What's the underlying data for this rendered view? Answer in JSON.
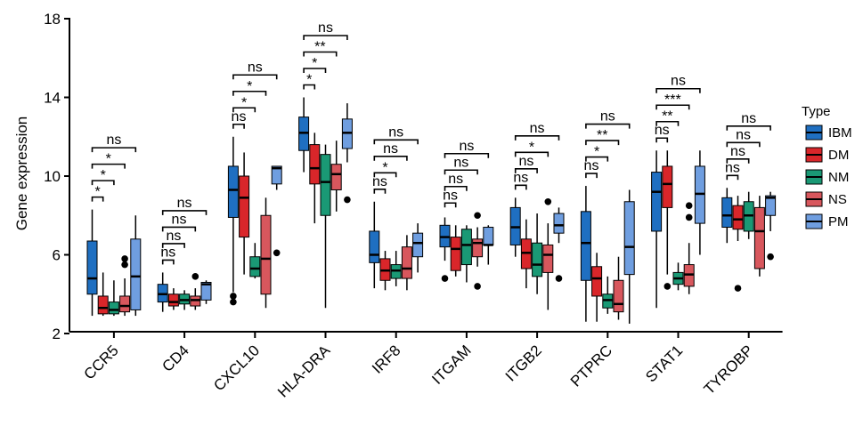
{
  "chart_data": {
    "type": "boxplot",
    "ylabel": "Gene expression",
    "ylim": [
      2,
      18
    ],
    "yticks": [
      "2",
      "6",
      "10",
      "14",
      "18"
    ],
    "legend": {
      "title": "Type",
      "position": "right"
    },
    "series": [
      {
        "name": "IBM",
        "color": "#1f6fc1"
      },
      {
        "name": "DM",
        "color": "#d9262a"
      },
      {
        "name": "NM",
        "color": "#1a9975"
      },
      {
        "name": "NS",
        "color": "#d8575d"
      },
      {
        "name": "PM",
        "color": "#6f9ee0"
      }
    ],
    "genes": [
      {
        "name": "CCR5",
        "boxes": [
          {
            "min": 2.9,
            "q1": 4.0,
            "med": 4.8,
            "q3": 6.7,
            "max": 8.3,
            "out": []
          },
          {
            "min": 2.9,
            "q1": 3.0,
            "med": 3.3,
            "q3": 3.9,
            "max": 5.1,
            "out": []
          },
          {
            "min": 2.9,
            "q1": 3.0,
            "med": 3.2,
            "q3": 3.6,
            "max": 4.7,
            "out": []
          },
          {
            "min": 2.9,
            "q1": 3.1,
            "med": 3.4,
            "q3": 3.9,
            "max": 4.8,
            "out": [
              5.5,
              5.8
            ]
          },
          {
            "min": 2.9,
            "q1": 3.2,
            "med": 4.9,
            "q3": 6.8,
            "max": 8.0,
            "out": []
          }
        ],
        "sig": [
          "*",
          "*",
          "*",
          "ns"
        ]
      },
      {
        "name": "CD4",
        "boxes": [
          {
            "min": 3.1,
            "q1": 3.6,
            "med": 4.0,
            "q3": 4.5,
            "max": 5.1,
            "out": []
          },
          {
            "min": 3.2,
            "q1": 3.4,
            "med": 3.6,
            "q3": 4.0,
            "max": 4.3,
            "out": []
          },
          {
            "min": 3.2,
            "q1": 3.5,
            "med": 3.7,
            "q3": 4.0,
            "max": 4.2,
            "out": []
          },
          {
            "min": 3.2,
            "q1": 3.4,
            "med": 3.7,
            "q3": 3.9,
            "max": 4.3,
            "out": [
              4.9
            ]
          },
          {
            "min": 3.5,
            "q1": 3.7,
            "med": 4.5,
            "q3": 4.6,
            "max": 4.7,
            "out": []
          }
        ],
        "sig": [
          "ns",
          "ns",
          "ns",
          "ns"
        ]
      },
      {
        "name": "CXCL10",
        "boxes": [
          {
            "min": 4.1,
            "q1": 7.9,
            "med": 9.3,
            "q3": 10.5,
            "max": 12.0,
            "out": [
              3.6,
              3.9
            ]
          },
          {
            "min": 5.0,
            "q1": 6.9,
            "med": 8.9,
            "q3": 10.0,
            "max": 11.2,
            "out": []
          },
          {
            "min": 4.8,
            "q1": 4.9,
            "med": 5.3,
            "q3": 5.9,
            "max": 6.6,
            "out": []
          },
          {
            "min": 3.3,
            "q1": 4.0,
            "med": 5.8,
            "q3": 8.0,
            "max": 8.9,
            "out": []
          },
          {
            "min": 9.3,
            "q1": 9.6,
            "med": 10.4,
            "q3": 10.5,
            "max": 10.5,
            "out": [
              6.1
            ]
          }
        ],
        "sig": [
          "ns",
          "*",
          "*",
          "ns"
        ]
      },
      {
        "name": "HLA-DRA",
        "boxes": [
          {
            "min": 10.2,
            "q1": 11.3,
            "med": 12.2,
            "q3": 13.0,
            "max": 14.0,
            "out": []
          },
          {
            "min": 7.6,
            "q1": 9.6,
            "med": 10.4,
            "q3": 11.6,
            "max": 12.2,
            "out": []
          },
          {
            "min": 3.3,
            "q1": 8.0,
            "med": 9.7,
            "q3": 11.1,
            "max": 11.6,
            "out": []
          },
          {
            "min": 8.2,
            "q1": 9.3,
            "med": 10.1,
            "q3": 10.6,
            "max": 11.8,
            "out": []
          },
          {
            "min": 10.7,
            "q1": 11.4,
            "med": 12.2,
            "q3": 12.9,
            "max": 13.7,
            "out": [
              8.8
            ]
          }
        ],
        "sig": [
          "*",
          "*",
          "**",
          "ns"
        ]
      },
      {
        "name": "IRF8",
        "boxes": [
          {
            "min": 4.3,
            "q1": 5.6,
            "med": 6.0,
            "q3": 7.2,
            "max": 8.7,
            "out": []
          },
          {
            "min": 4.2,
            "q1": 4.7,
            "med": 5.2,
            "q3": 5.8,
            "max": 6.2,
            "out": []
          },
          {
            "min": 4.4,
            "q1": 4.8,
            "med": 5.2,
            "q3": 5.5,
            "max": 6.2,
            "out": []
          },
          {
            "min": 4.2,
            "q1": 4.8,
            "med": 5.3,
            "q3": 6.4,
            "max": 7.0,
            "out": []
          },
          {
            "min": 5.1,
            "q1": 5.9,
            "med": 6.6,
            "q3": 7.1,
            "max": 7.6,
            "out": []
          }
        ],
        "sig": [
          "ns",
          "*",
          "ns",
          "ns"
        ]
      },
      {
        "name": "ITGAM",
        "boxes": [
          {
            "min": 5.7,
            "q1": 6.4,
            "med": 6.9,
            "q3": 7.5,
            "max": 7.9,
            "out": [
              4.8
            ]
          },
          {
            "min": 4.9,
            "q1": 5.2,
            "med": 6.3,
            "q3": 6.9,
            "max": 7.5,
            "out": []
          },
          {
            "min": 4.6,
            "q1": 5.5,
            "med": 6.5,
            "q3": 7.3,
            "max": 7.5,
            "out": []
          },
          {
            "min": 5.4,
            "q1": 5.9,
            "med": 6.6,
            "q3": 6.8,
            "max": 7.4,
            "out": [
              4.4,
              8.0
            ]
          },
          {
            "min": 5.5,
            "q1": 6.5,
            "med": 6.5,
            "q3": 7.4,
            "max": 7.5,
            "out": []
          }
        ],
        "sig": [
          "ns",
          "ns",
          "ns",
          "ns"
        ]
      },
      {
        "name": "ITGB2",
        "boxes": [
          {
            "min": 5.9,
            "q1": 6.5,
            "med": 7.4,
            "q3": 8.4,
            "max": 8.9,
            "out": []
          },
          {
            "min": 4.3,
            "q1": 5.3,
            "med": 6.1,
            "q3": 6.8,
            "max": 7.8,
            "out": []
          },
          {
            "min": 4.0,
            "q1": 4.9,
            "med": 5.5,
            "q3": 6.6,
            "max": 8.1,
            "out": []
          },
          {
            "min": 3.2,
            "q1": 5.1,
            "med": 6.0,
            "q3": 6.5,
            "max": 7.6,
            "out": [
              8.7
            ]
          },
          {
            "min": 6.6,
            "q1": 7.1,
            "med": 7.5,
            "q3": 8.1,
            "max": 8.4,
            "out": [
              4.8
            ]
          }
        ],
        "sig": [
          "ns",
          "ns",
          "*",
          "ns"
        ]
      },
      {
        "name": "PTPRC",
        "boxes": [
          {
            "min": 2.6,
            "q1": 4.7,
            "med": 6.6,
            "q3": 8.2,
            "max": 9.5,
            "out": []
          },
          {
            "min": 2.6,
            "q1": 3.9,
            "med": 4.8,
            "q3": 5.4,
            "max": 6.1,
            "out": []
          },
          {
            "min": 3.0,
            "q1": 3.3,
            "med": 3.7,
            "q3": 4.0,
            "max": 4.9,
            "out": []
          },
          {
            "min": 2.7,
            "q1": 3.1,
            "med": 3.5,
            "q3": 4.7,
            "max": 5.9,
            "out": []
          },
          {
            "min": 2.5,
            "q1": 5.0,
            "med": 6.4,
            "q3": 8.7,
            "max": 9.3,
            "out": []
          }
        ],
        "sig": [
          "ns",
          "*",
          "**",
          "ns"
        ]
      },
      {
        "name": "STAT1",
        "boxes": [
          {
            "min": 3.3,
            "q1": 7.2,
            "med": 9.2,
            "q3": 10.2,
            "max": 11.3,
            "out": []
          },
          {
            "min": 5.0,
            "q1": 8.4,
            "med": 9.6,
            "q3": 10.5,
            "max": 11.3,
            "out": [
              4.4
            ]
          },
          {
            "min": 4.2,
            "q1": 4.5,
            "med": 4.8,
            "q3": 5.1,
            "max": 5.6,
            "out": []
          },
          {
            "min": 4.0,
            "q1": 4.4,
            "med": 5.0,
            "q3": 5.5,
            "max": 6.6,
            "out": [
              7.9,
              8.5
            ]
          },
          {
            "min": 6.0,
            "q1": 7.6,
            "med": 9.1,
            "q3": 10.5,
            "max": 11.3,
            "out": []
          }
        ],
        "sig": [
          "ns",
          "**",
          "***",
          "ns"
        ]
      },
      {
        "name": "TYROBP",
        "boxes": [
          {
            "min": 6.6,
            "q1": 7.4,
            "med": 8.0,
            "q3": 8.9,
            "max": 9.4,
            "out": []
          },
          {
            "min": 6.7,
            "q1": 7.3,
            "med": 7.8,
            "q3": 8.5,
            "max": 9.0,
            "out": [
              4.3
            ]
          },
          {
            "min": 6.8,
            "q1": 7.2,
            "med": 8.0,
            "q3": 8.7,
            "max": 9.2,
            "out": []
          },
          {
            "min": 4.9,
            "q1": 5.3,
            "med": 7.2,
            "q3": 8.4,
            "max": 9.0,
            "out": []
          },
          {
            "min": 7.2,
            "q1": 8.0,
            "med": 8.9,
            "q3": 9.0,
            "max": 9.2,
            "out": [
              5.9
            ]
          }
        ],
        "sig": [
          "ns",
          "ns",
          "ns",
          "ns"
        ]
      }
    ]
  }
}
